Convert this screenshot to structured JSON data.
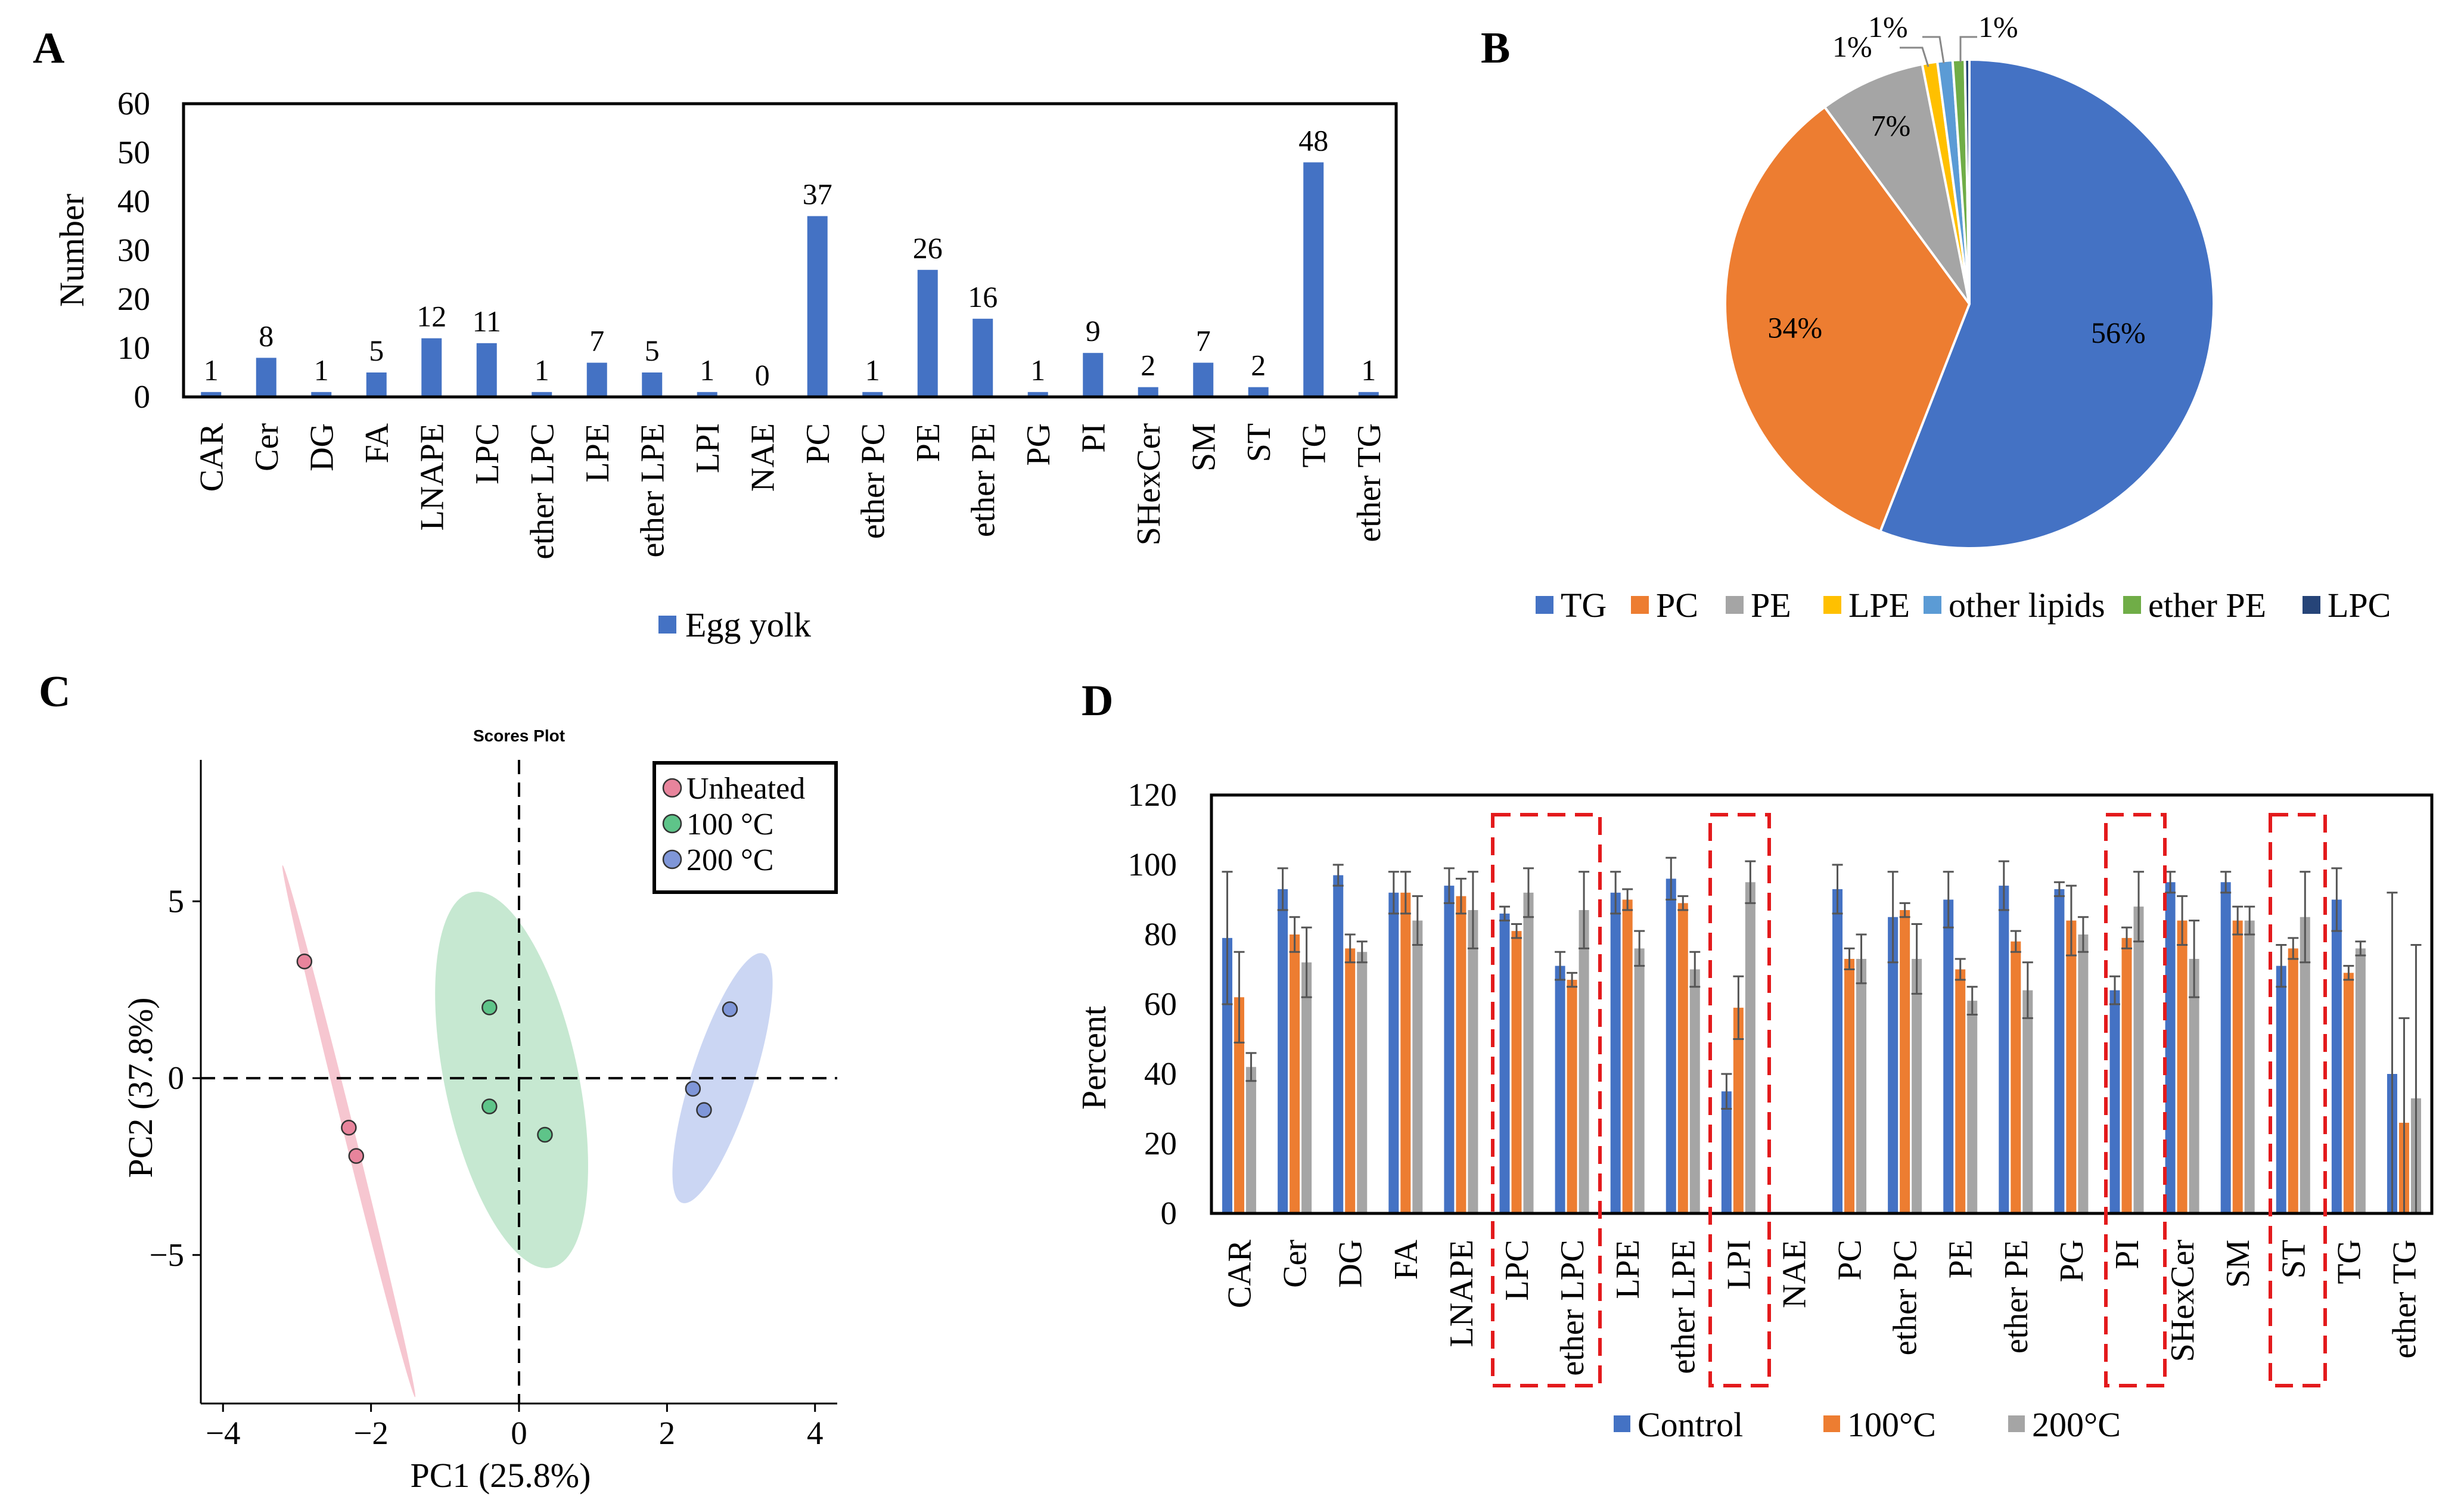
{
  "colors": {
    "control": "#4472c4",
    "c100": "#ed7d31",
    "c200": "#a5a5a5",
    "lpe": "#ffc000",
    "other": "#5b9bd5",
    "etherpe": "#70ad47",
    "lpc": "#264478",
    "unheated": "#e8849c",
    "g100": "#5ec489",
    "g200": "#7f96d8",
    "highlight": "#e31a1c"
  },
  "panels": {
    "a": "A",
    "b": "B",
    "c": "C",
    "d": "D"
  },
  "chart_data": [
    {
      "id": "A",
      "type": "bar",
      "ylabel": "Number",
      "ylim": [
        0,
        60
      ],
      "yticks": [
        0,
        10,
        20,
        30,
        40,
        50,
        60
      ],
      "categories": [
        "CAR",
        "Cer",
        "DG",
        "FA",
        "LNAPE",
        "LPC",
        "ether LPC",
        "LPE",
        "ether LPE",
        "LPI",
        "NAE",
        "PC",
        "ether PC",
        "PE",
        "ether PE",
        "PG",
        "PI",
        "SHexCer",
        "SM",
        "ST",
        "TG",
        "ether TG"
      ],
      "series": [
        {
          "name": "Egg yolk",
          "values": [
            1,
            8,
            1,
            5,
            12,
            11,
            1,
            7,
            5,
            1,
            0,
            37,
            1,
            26,
            16,
            1,
            9,
            2,
            7,
            2,
            48,
            1
          ]
        }
      ]
    },
    {
      "id": "B",
      "type": "pie",
      "labels": [
        "TG",
        "PC",
        "PE",
        "LPE",
        "other lipids",
        "ether PE",
        "LPC"
      ],
      "values": [
        56.0,
        34.0,
        7.0,
        1.0,
        1.0,
        0.8,
        0.3
      ],
      "value_labels": [
        "56%",
        "34%",
        "7%",
        "1%",
        "1%",
        "1%",
        ""
      ]
    },
    {
      "id": "C",
      "type": "scatter",
      "title": "Scores Plot",
      "xlabel": "PC1 (25.8%)",
      "ylabel": "PC2 (37.8%)",
      "xlim": [
        -4.3,
        4.3
      ],
      "ylim": [
        -9.2,
        9.0
      ],
      "xticks": [
        -4,
        -2,
        0,
        2,
        4
      ],
      "yticks": [
        -5,
        0,
        5
      ],
      "xtick_labels": [
        "−4",
        "−2",
        "0",
        "2",
        "4"
      ],
      "ytick_labels": [
        "−5",
        "0",
        "5"
      ],
      "series": [
        {
          "name": "Unheated",
          "x": [
            -2.9,
            -2.3,
            -2.2
          ],
          "y": [
            3.3,
            -1.4,
            -2.2
          ]
        },
        {
          "name": "100 °C",
          "x": [
            -0.4,
            -0.4,
            0.35
          ],
          "y": [
            2.0,
            -0.8,
            -1.6
          ]
        },
        {
          "name": "200 °C",
          "x": [
            2.85,
            2.35,
            2.5
          ],
          "y": [
            1.95,
            -0.3,
            -0.9
          ]
        }
      ]
    },
    {
      "id": "D",
      "type": "bar",
      "ylabel": "Percent",
      "ylim": [
        0,
        120
      ],
      "yticks": [
        0,
        20,
        40,
        60,
        80,
        100,
        120
      ],
      "categories": [
        "CAR",
        "Cer",
        "DG",
        "FA",
        "LNAPE",
        "LPC",
        "ether LPC",
        "LPE",
        "ether LPE",
        "LPI",
        "NAE",
        "PC",
        "ether PC",
        "PE",
        "ether PE",
        "PG",
        "PI",
        "SHexCer",
        "SM",
        "ST",
        "TG",
        "ether TG"
      ],
      "highlighted_categories": [
        "LPC",
        "ether LPC",
        "LPI",
        "PI",
        "ST"
      ],
      "series": [
        {
          "name": "Control",
          "values": [
            79,
            93,
            97,
            92,
            94,
            86,
            71,
            92,
            96,
            35,
            null,
            93,
            85,
            90,
            94,
            93,
            64,
            95,
            95,
            71,
            90,
            40
          ],
          "errors": [
            19,
            6,
            3,
            6,
            5,
            2,
            4,
            6,
            6,
            5,
            null,
            7,
            13,
            8,
            7,
            2,
            4,
            3,
            3,
            6,
            9,
            52
          ]
        },
        {
          "name": "100°C",
          "values": [
            62,
            80,
            76,
            92,
            91,
            81,
            67,
            90,
            89,
            59,
            null,
            73,
            87,
            70,
            78,
            84,
            79,
            84,
            84,
            76,
            69,
            26
          ],
          "errors": [
            13,
            5,
            4,
            6,
            5,
            2,
            2,
            3,
            2,
            9,
            null,
            3,
            2,
            3,
            3,
            10,
            3,
            7,
            4,
            3,
            2,
            30
          ]
        },
        {
          "name": "200°C",
          "values": [
            42,
            72,
            75,
            84,
            87,
            92,
            87,
            76,
            70,
            95,
            null,
            73,
            73,
            61,
            64,
            80,
            88,
            73,
            84,
            85,
            76,
            33
          ],
          "errors": [
            4,
            10,
            3,
            7,
            11,
            7,
            11,
            5,
            5,
            6,
            null,
            7,
            10,
            4,
            8,
            5,
            10,
            11,
            4,
            13,
            2,
            44
          ]
        }
      ]
    }
  ]
}
